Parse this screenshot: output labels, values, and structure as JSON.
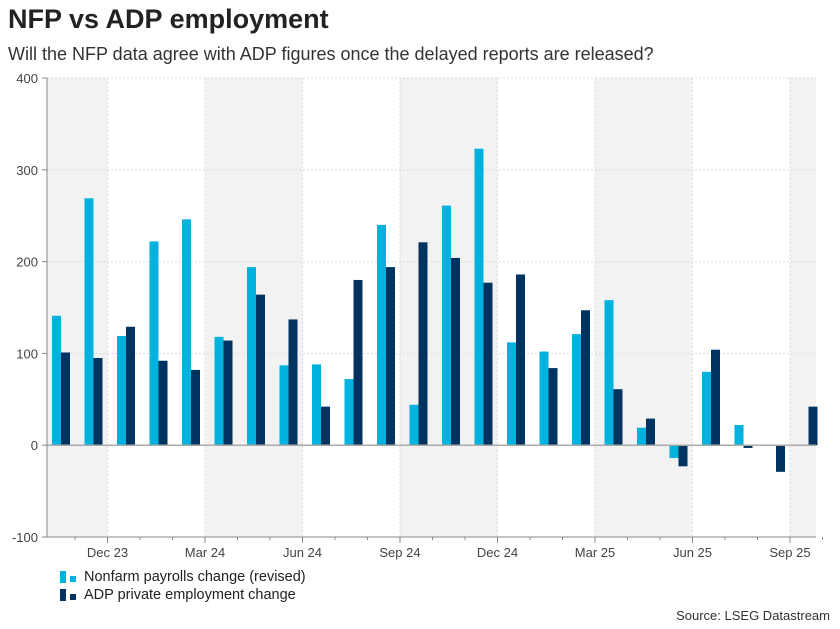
{
  "title": "NFP vs ADP employment",
  "subtitle": "Will the NFP data agree with ADP figures once the delayed reports are released?",
  "source": "Source: LSEG Datastream",
  "colors": {
    "nfp": "#00B2DD",
    "adp": "#00335F",
    "band": "#F2F2F2"
  },
  "chart_data": {
    "type": "bar",
    "categories": [
      "Nov 23",
      "Dec 23",
      "Jan 24",
      "Feb 24",
      "Mar 24",
      "Apr 24",
      "May 24",
      "Jun 24",
      "Jul 24",
      "Aug 24",
      "Sep 24",
      "Oct 24",
      "Nov 24",
      "Dec 24",
      "Jan 25",
      "Feb 25",
      "Mar 25",
      "Apr 25",
      "May 25",
      "Jun 25",
      "Jul 25",
      "Aug 25",
      "Sep 25",
      "Oct 25"
    ],
    "series": [
      {
        "name": "Nonfarm payrolls change (revised)",
        "values": [
          141,
          269,
          119,
          222,
          246,
          118,
          194,
          87,
          88,
          72,
          240,
          44,
          261,
          323,
          112,
          102,
          121,
          158,
          19,
          -14,
          80,
          22,
          null,
          null
        ]
      },
      {
        "name": "ADP private employment change",
        "values": [
          101,
          95,
          129,
          92,
          82,
          114,
          164,
          137,
          42,
          180,
          194,
          221,
          204,
          177,
          186,
          84,
          147,
          61,
          29,
          -23,
          104,
          -3,
          -29,
          42
        ]
      }
    ],
    "x_tick_labels": [
      "Dec 23",
      "Mar 24",
      "Jun 24",
      "Sep 24",
      "Dec 24",
      "Mar 25",
      "Jun 25",
      "Sep 25"
    ],
    "y_tick_labels": [
      "400",
      "300",
      "200",
      "100",
      "0",
      "-100"
    ],
    "ylim": [
      -100,
      400
    ],
    "grid": true,
    "legend": "bottom-left",
    "xlabel": "",
    "ylabel": ""
  }
}
